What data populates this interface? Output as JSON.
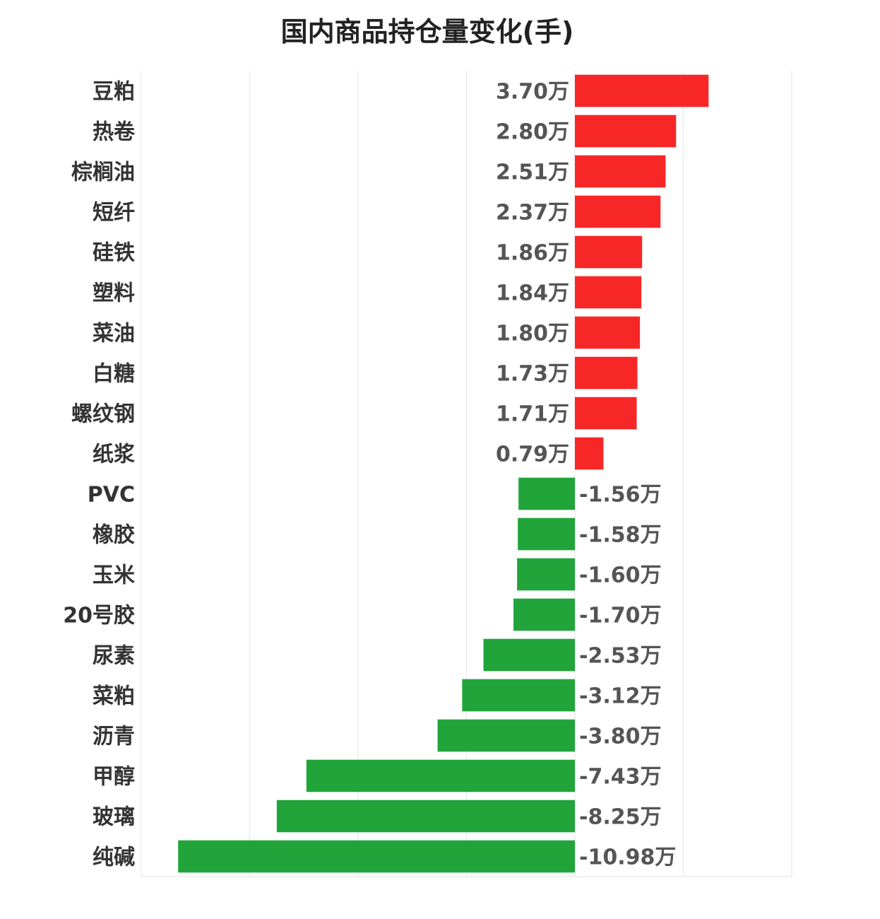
{
  "chart_data": {
    "type": "bar",
    "orientation": "horizontal",
    "title": "国内商品持仓量变化(手)",
    "unit": "万",
    "categories": [
      "豆粕",
      "热卷",
      "棕榈油",
      "短纤",
      "硅铁",
      "塑料",
      "菜油",
      "白糖",
      "螺纹钢",
      "纸浆",
      "PVC",
      "橡胶",
      "玉米",
      "20号胶",
      "尿素",
      "菜粕",
      "沥青",
      "甲醇",
      "玻璃",
      "纯碱"
    ],
    "values": [
      3.7,
      2.8,
      2.51,
      2.37,
      1.86,
      1.84,
      1.8,
      1.73,
      1.71,
      0.79,
      -1.56,
      -1.58,
      -1.6,
      -1.7,
      -2.53,
      -3.12,
      -3.8,
      -7.43,
      -8.25,
      -10.98
    ],
    "value_labels": [
      "3.70万",
      "2.80万",
      "2.51万",
      "2.37万",
      "1.86万",
      "1.84万",
      "1.80万",
      "1.73万",
      "1.71万",
      "0.79万",
      "-1.56万",
      "-1.58万",
      "-1.60万",
      "-1.70万",
      "-2.53万",
      "-3.12万",
      "-3.80万",
      "-7.43万",
      "-8.25万",
      "-10.98万"
    ],
    "xlim": [
      -12,
      6
    ],
    "gridlines": [
      -12,
      -9,
      -6,
      -3,
      0,
      3,
      6
    ],
    "grid": true,
    "colors": {
      "positive": "#f82727",
      "negative": "#21a53a"
    }
  }
}
